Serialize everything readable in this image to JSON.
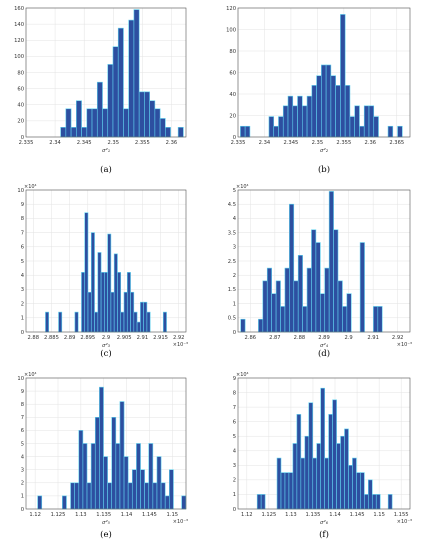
{
  "colors": {
    "bar_fill": "#2d4fa0",
    "bar_edge": "#5fd0ee",
    "grid": "#e3e3e3",
    "axis": "#555555"
  },
  "chart_data": [
    {
      "type": "bar",
      "caption": "(a)",
      "xlabel": "σ²₁",
      "multiplier": "",
      "xlim": [
        2.335,
        2.3625
      ],
      "ylim": [
        0,
        160
      ],
      "xticks": [
        2.335,
        2.34,
        2.345,
        2.35,
        2.355,
        2.36
      ],
      "xtick_labels": [
        "2.335",
        "2.34",
        "2.345",
        "2.35",
        "2.355",
        "2.36"
      ],
      "yticks": [
        0,
        20,
        40,
        60,
        80,
        100,
        120,
        140,
        160
      ],
      "ytick_labels": [
        "0",
        "20",
        "40",
        "60",
        "80",
        "100",
        "120",
        "140",
        "160"
      ],
      "bin_width": 0.0009,
      "bins_x": [
        2.3414,
        2.3423,
        2.3432,
        2.3441,
        2.345,
        2.3459,
        2.3468,
        2.3477,
        2.3486,
        2.3495,
        2.3504,
        2.3513,
        2.3522,
        2.3531,
        2.354,
        2.3549,
        2.3558,
        2.3567,
        2.3576,
        2.3585,
        2.3594,
        2.3616
      ],
      "values": [
        12,
        35,
        12,
        45,
        12,
        35,
        35,
        68,
        35,
        90,
        112,
        135,
        35,
        145,
        158,
        56,
        56,
        45,
        35,
        23,
        12,
        12
      ]
    },
    {
      "type": "bar",
      "caption": "(b)",
      "xlabel": "σ²₂",
      "multiplier": "",
      "xlim": [
        2.335,
        2.3675
      ],
      "ylim": [
        0,
        120
      ],
      "xticks": [
        2.335,
        2.34,
        2.345,
        2.35,
        2.355,
        2.36,
        2.365
      ],
      "xtick_labels": [
        "2.335",
        "2.34",
        "2.345",
        "2.35",
        "2.355",
        "2.36",
        "2.365"
      ],
      "yticks": [
        0,
        20,
        40,
        60,
        80,
        100,
        120
      ],
      "ytick_labels": [
        "0",
        "20",
        "40",
        "60",
        "80",
        "100",
        "120"
      ],
      "bin_width": 0.0009,
      "bins_x": [
        2.3359,
        2.3368,
        2.3413,
        2.3422,
        2.3431,
        2.344,
        2.3449,
        2.3458,
        2.3467,
        2.3476,
        2.3485,
        2.3494,
        2.3503,
        2.3512,
        2.3521,
        2.353,
        2.3539,
        2.3548,
        2.3557,
        2.3566,
        2.3575,
        2.3584,
        2.3593,
        2.3602,
        2.3611,
        2.3638,
        2.3656
      ],
      "values": [
        10,
        10,
        19,
        10,
        19,
        29,
        38,
        29,
        38,
        29,
        38,
        48,
        57,
        67,
        67,
        57,
        48,
        114,
        48,
        19,
        29,
        10,
        29,
        29,
        19,
        10,
        10
      ]
    },
    {
      "type": "bar",
      "caption": "(c)",
      "xlabel": "σ²₃",
      "multiplier": "×10⁴",
      "x_multiplier": "×10⁻³",
      "xlim": [
        2.878,
        2.922
      ],
      "ylim": [
        0,
        10
      ],
      "xticks": [
        2.88,
        2.885,
        2.89,
        2.895,
        2.9,
        2.905,
        2.91,
        2.915,
        2.92
      ],
      "xtick_labels": [
        "2.88",
        "2.885",
        "2.89",
        "2.895",
        "2.9",
        "2.905",
        "2.91",
        "2.915",
        "2.92"
      ],
      "yticks": [
        0,
        1,
        2,
        3,
        4,
        5,
        6,
        7,
        8,
        9,
        10
      ],
      "ytick_labels": [
        "0",
        "1",
        "2",
        "3",
        "4",
        "5",
        "6",
        "7",
        "8",
        "9",
        "10"
      ],
      "bin_width": 0.0009,
      "bins_x": [
        2.8838,
        2.8874,
        2.8919,
        2.8937,
        2.8946,
        2.8955,
        2.8964,
        2.8973,
        2.8982,
        2.8991,
        2.9,
        2.9009,
        2.9018,
        2.9027,
        2.9036,
        2.9045,
        2.9054,
        2.9063,
        2.9072,
        2.9081,
        2.909,
        2.9099,
        2.9108,
        2.9117,
        2.9162
      ],
      "values": [
        1.4,
        1.4,
        1.4,
        4.2,
        8.4,
        2.8,
        7.0,
        1.4,
        5.6,
        4.2,
        4.2,
        6.9,
        2.8,
        5.5,
        4.2,
        1.4,
        2.8,
        4.2,
        2.8,
        1.4,
        0.7,
        2.1,
        2.1,
        1.4,
        1.4
      ]
    },
    {
      "type": "bar",
      "caption": "(d)",
      "xlabel": "σ²₄",
      "multiplier": "×10⁴",
      "x_multiplier": "×10⁻³",
      "xlim": [
        2.855,
        2.925
      ],
      "ylim": [
        0,
        5
      ],
      "xticks": [
        2.86,
        2.87,
        2.88,
        2.89,
        2.9,
        2.91,
        2.92
      ],
      "xtick_labels": [
        "2.86",
        "2.87",
        "2.88",
        "2.89",
        "2.9",
        "2.91",
        "2.92"
      ],
      "yticks": [
        0,
        0.5,
        1,
        1.5,
        2,
        2.5,
        3,
        3.5,
        4,
        4.5,
        5
      ],
      "ytick_labels": [
        "0",
        "0.5",
        "1",
        "1.5",
        "2",
        "2.5",
        "3",
        "3.5",
        "4",
        "4.5",
        "5"
      ],
      "bin_width": 0.0018,
      "bins_x": [
        2.857,
        2.8642,
        2.866,
        2.8678,
        2.8696,
        2.8714,
        2.8732,
        2.875,
        2.8768,
        2.8786,
        2.8804,
        2.8822,
        2.884,
        2.8858,
        2.8876,
        2.8894,
        2.8912,
        2.893,
        2.8948,
        2.8966,
        2.8984,
        2.9002,
        2.9056,
        2.911,
        2.9128
      ],
      "values": [
        0.45,
        0.45,
        1.8,
        2.25,
        1.35,
        1.8,
        0.9,
        2.25,
        4.5,
        1.8,
        2.7,
        0.9,
        2.25,
        3.6,
        3.15,
        1.35,
        2.25,
        4.95,
        3.6,
        1.8,
        0.9,
        1.35,
        3.15,
        0.9,
        0.9
      ]
    },
    {
      "type": "bar",
      "caption": "(e)",
      "xlabel": "σ²₅",
      "multiplier": "×10⁴",
      "x_multiplier": "×10⁻³",
      "xlim": [
        1.118,
        1.153
      ],
      "ylim": [
        0,
        10
      ],
      "xticks": [
        1.12,
        1.125,
        1.13,
        1.135,
        1.14,
        1.145,
        1.15
      ],
      "xtick_labels": [
        "1.12",
        "1.125",
        "1.13",
        "1.135",
        "1.14",
        "1.145",
        "1.15"
      ],
      "yticks": [
        0,
        1,
        2,
        3,
        4,
        5,
        6,
        7,
        8,
        9,
        10
      ],
      "ytick_labels": [
        "0",
        "1",
        "2",
        "3",
        "4",
        "5",
        "6",
        "7",
        "8",
        "9",
        "10"
      ],
      "bin_width": 0.0009,
      "bins_x": [
        1.121,
        1.1264,
        1.1282,
        1.1291,
        1.13,
        1.1309,
        1.1318,
        1.1327,
        1.1336,
        1.1345,
        1.1354,
        1.1363,
        1.1372,
        1.1381,
        1.139,
        1.1399,
        1.1408,
        1.1417,
        1.1426,
        1.1435,
        1.1444,
        1.1453,
        1.1462,
        1.1471,
        1.148,
        1.1489,
        1.1498,
        1.1525
      ],
      "values": [
        1.0,
        1.0,
        2.0,
        2.0,
        6.0,
        5.0,
        2.0,
        5.0,
        7.0,
        9.3,
        4.0,
        2.0,
        7.0,
        5.0,
        8.2,
        4.0,
        2.0,
        3.0,
        5.0,
        3.0,
        2.0,
        5.0,
        2.0,
        4.0,
        2.0,
        1.0,
        3.0,
        1.0
      ]
    },
    {
      "type": "bar",
      "caption": "(f)",
      "xlabel": "σ²₆",
      "multiplier": "×10⁴",
      "x_multiplier": "×10⁻³",
      "xlim": [
        1.118,
        1.157
      ],
      "ylim": [
        0,
        9
      ],
      "xticks": [
        1.12,
        1.125,
        1.13,
        1.135,
        1.14,
        1.145,
        1.15,
        1.155
      ],
      "xtick_labels": [
        "1.12",
        "1.125",
        "1.13",
        "1.135",
        "1.14",
        "1.145",
        "1.15",
        "1.155"
      ],
      "yticks": [
        0,
        1,
        2,
        3,
        4,
        5,
        6,
        7,
        8,
        9
      ],
      "ytick_labels": [
        "0",
        "1",
        "2",
        "3",
        "4",
        "5",
        "6",
        "7",
        "8",
        "9"
      ],
      "bin_width": 0.0009,
      "bins_x": [
        1.1228,
        1.1237,
        1.1273,
        1.1282,
        1.1291,
        1.13,
        1.1309,
        1.1318,
        1.1327,
        1.1336,
        1.1345,
        1.1354,
        1.1363,
        1.1372,
        1.1381,
        1.139,
        1.1399,
        1.1408,
        1.1417,
        1.1426,
        1.1435,
        1.1444,
        1.1453,
        1.1462,
        1.1471,
        1.148,
        1.1489,
        1.1498,
        1.1525
      ],
      "values": [
        1.0,
        1.0,
        3.5,
        2.5,
        2.5,
        2.5,
        4.5,
        6.5,
        3.5,
        5.0,
        7.3,
        3.5,
        4.5,
        8.3,
        3.5,
        6.5,
        7.5,
        4.5,
        5.0,
        5.5,
        3.0,
        3.5,
        2.5,
        2.5,
        1.0,
        2.0,
        1.0,
        1.0,
        1.0
      ]
    }
  ]
}
